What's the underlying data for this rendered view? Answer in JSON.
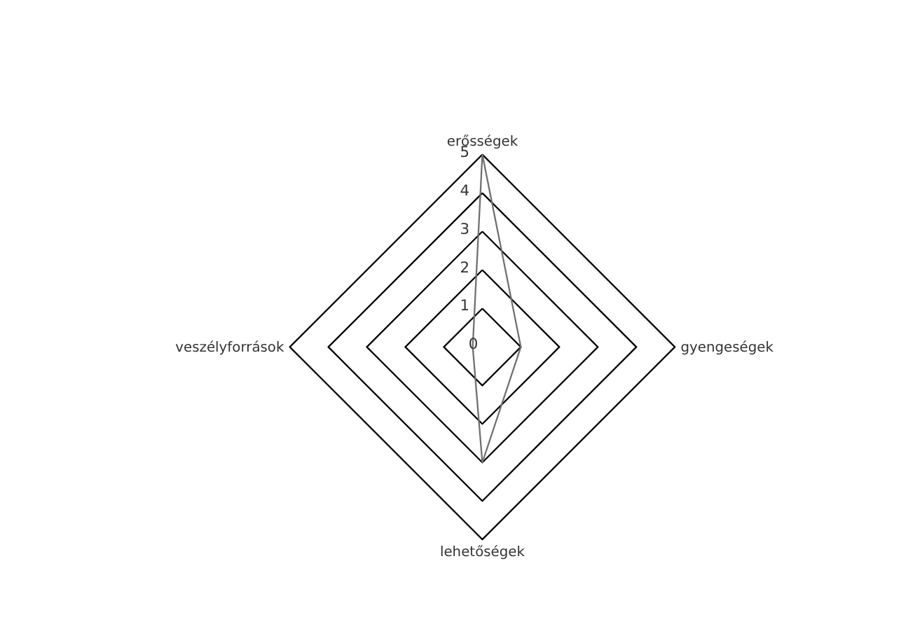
{
  "chart_data": {
    "type": "radar",
    "categories": [
      "erősségek",
      "gyengeségek",
      "lehetőségek",
      "veszélyforrások"
    ],
    "series": [
      {
        "color": "#707070",
        "values": [
          5,
          1,
          3,
          0.25
        ]
      }
    ],
    "ylim": [
      0,
      5
    ],
    "yticks": [
      0,
      1,
      2,
      3,
      4,
      5
    ],
    "grid": true
  }
}
